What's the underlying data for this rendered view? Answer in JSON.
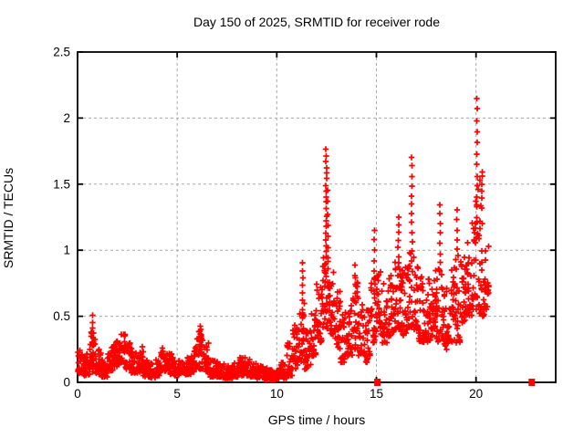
{
  "chart_data": {
    "type": "scatter",
    "title": "Day 150 of 2025, SRMTID for receiver rode",
    "xlabel": "GPS time / hours",
    "ylabel": "SRMTID / TECUs",
    "xlim": [
      0,
      24
    ],
    "ylim": [
      0,
      2.5
    ],
    "xticks": [
      0,
      5,
      10,
      15,
      20
    ],
    "yticks": [
      0,
      0.5,
      1,
      1.5,
      2,
      2.5
    ],
    "grid": "dashed",
    "legend": "none",
    "marker": "plus-cross",
    "marker_color": "#ff0000",
    "grid_color": "#a8a8a8",
    "axis_color": "#000000",
    "series_name": "SRMTID",
    "bands_format": [
      "x_start_hours",
      "x_end_hours",
      "y_min_TECUs",
      "y_max_TECUs",
      "n_points"
    ],
    "bands": [
      [
        0.0,
        0.3,
        0.07,
        0.25,
        30
      ],
      [
        0.3,
        0.6,
        0.05,
        0.22,
        30
      ],
      [
        0.6,
        0.9,
        0.08,
        0.38,
        30
      ],
      [
        0.9,
        1.2,
        0.06,
        0.25,
        28
      ],
      [
        1.2,
        1.5,
        0.04,
        0.18,
        28
      ],
      [
        1.5,
        1.8,
        0.08,
        0.27,
        28
      ],
      [
        1.8,
        2.1,
        0.12,
        0.33,
        30
      ],
      [
        2.1,
        2.4,
        0.14,
        0.37,
        30
      ],
      [
        2.4,
        2.7,
        0.1,
        0.3,
        28
      ],
      [
        2.7,
        3.0,
        0.07,
        0.24,
        28
      ],
      [
        3.0,
        3.3,
        0.08,
        0.27,
        28
      ],
      [
        3.3,
        3.6,
        0.04,
        0.18,
        26
      ],
      [
        3.6,
        3.9,
        0.03,
        0.15,
        26
      ],
      [
        3.9,
        4.2,
        0.05,
        0.2,
        26
      ],
      [
        4.2,
        4.5,
        0.08,
        0.26,
        28
      ],
      [
        4.5,
        4.8,
        0.06,
        0.22,
        26
      ],
      [
        4.8,
        5.1,
        0.05,
        0.19,
        26
      ],
      [
        5.1,
        5.4,
        0.07,
        0.21,
        26
      ],
      [
        5.4,
        5.7,
        0.06,
        0.2,
        26
      ],
      [
        5.7,
        6.0,
        0.08,
        0.28,
        28
      ],
      [
        6.0,
        6.3,
        0.1,
        0.4,
        30
      ],
      [
        6.3,
        6.6,
        0.08,
        0.3,
        26
      ],
      [
        6.6,
        6.9,
        0.04,
        0.17,
        26
      ],
      [
        6.9,
        7.2,
        0.04,
        0.16,
        26
      ],
      [
        7.2,
        7.5,
        0.03,
        0.14,
        26
      ],
      [
        7.5,
        7.8,
        0.03,
        0.14,
        26
      ],
      [
        7.8,
        8.1,
        0.04,
        0.16,
        26
      ],
      [
        8.1,
        8.4,
        0.05,
        0.2,
        26
      ],
      [
        8.4,
        8.7,
        0.05,
        0.18,
        26
      ],
      [
        8.7,
        9.0,
        0.04,
        0.15,
        26
      ],
      [
        9.0,
        9.3,
        0.03,
        0.13,
        26
      ],
      [
        9.3,
        9.6,
        0.02,
        0.11,
        26
      ],
      [
        9.6,
        9.9,
        0.02,
        0.1,
        28
      ],
      [
        9.9,
        10.2,
        0.02,
        0.11,
        28
      ],
      [
        10.2,
        10.5,
        0.03,
        0.15,
        26
      ],
      [
        10.5,
        10.8,
        0.05,
        0.3,
        26
      ],
      [
        10.8,
        11.1,
        0.1,
        0.45,
        28
      ],
      [
        11.1,
        11.4,
        0.15,
        0.6,
        28
      ],
      [
        11.4,
        11.7,
        0.1,
        0.4,
        26
      ],
      [
        11.7,
        12.0,
        0.2,
        0.55,
        28
      ],
      [
        12.0,
        12.3,
        0.3,
        0.75,
        30
      ],
      [
        12.3,
        12.6,
        0.4,
        0.95,
        30
      ],
      [
        12.6,
        12.9,
        0.35,
        0.85,
        28
      ],
      [
        12.9,
        13.2,
        0.25,
        0.7,
        28
      ],
      [
        13.2,
        13.5,
        0.15,
        0.55,
        28
      ],
      [
        13.5,
        13.8,
        0.2,
        0.6,
        28
      ],
      [
        13.8,
        14.1,
        0.25,
        0.85,
        28
      ],
      [
        14.1,
        14.4,
        0.2,
        0.6,
        28
      ],
      [
        14.4,
        14.7,
        0.15,
        0.55,
        26
      ],
      [
        14.7,
        15.0,
        0.3,
        0.8,
        28
      ],
      [
        15.0,
        15.3,
        0.35,
        0.85,
        28
      ],
      [
        15.3,
        15.6,
        0.3,
        0.75,
        28
      ],
      [
        15.6,
        15.9,
        0.35,
        0.85,
        28
      ],
      [
        15.9,
        16.2,
        0.4,
        0.95,
        28
      ],
      [
        16.2,
        16.5,
        0.35,
        0.9,
        28
      ],
      [
        16.5,
        16.8,
        0.4,
        1.0,
        28
      ],
      [
        16.8,
        17.1,
        0.4,
        0.95,
        28
      ],
      [
        17.1,
        17.4,
        0.3,
        0.85,
        28
      ],
      [
        17.4,
        17.7,
        0.3,
        0.8,
        28
      ],
      [
        17.7,
        18.0,
        0.35,
        0.85,
        28
      ],
      [
        18.0,
        18.3,
        0.3,
        0.9,
        28
      ],
      [
        18.3,
        18.6,
        0.25,
        0.8,
        26
      ],
      [
        18.6,
        18.9,
        0.3,
        0.85,
        26
      ],
      [
        18.9,
        19.2,
        0.3,
        1.0,
        28
      ],
      [
        19.2,
        19.5,
        0.45,
        0.95,
        28
      ],
      [
        19.5,
        19.8,
        0.5,
        1.1,
        28
      ],
      [
        19.8,
        20.1,
        0.55,
        1.4,
        30
      ],
      [
        20.1,
        20.4,
        0.5,
        1.55,
        30
      ],
      [
        20.4,
        20.65,
        0.55,
        1.05,
        20
      ]
    ],
    "spikes_format": {
      "x": "hours",
      "base": "TECUs",
      "top": "TECUs",
      "n": "points"
    },
    "spikes": [
      {
        "x": 0.78,
        "base": 0.3,
        "top": 0.5,
        "n": 6
      },
      {
        "x": 6.15,
        "base": 0.28,
        "top": 0.42,
        "n": 6
      },
      {
        "x": 11.3,
        "base": 0.5,
        "top": 0.9,
        "n": 8
      },
      {
        "x": 12.48,
        "base": 0.9,
        "top": 1.77,
        "n": 20
      },
      {
        "x": 12.56,
        "base": 0.85,
        "top": 1.45,
        "n": 8
      },
      {
        "x": 13.95,
        "base": 0.6,
        "top": 0.88,
        "n": 5
      },
      {
        "x": 14.9,
        "base": 0.7,
        "top": 1.15,
        "n": 7
      },
      {
        "x": 16.1,
        "base": 0.9,
        "top": 1.25,
        "n": 7
      },
      {
        "x": 16.78,
        "base": 1.0,
        "top": 1.7,
        "n": 11
      },
      {
        "x": 18.2,
        "base": 0.9,
        "top": 1.35,
        "n": 7
      },
      {
        "x": 19.05,
        "base": 1.0,
        "top": 1.3,
        "n": 5
      },
      {
        "x": 20.05,
        "base": 1.4,
        "top": 2.15,
        "n": 10
      },
      {
        "x": 20.3,
        "base": 1.4,
        "top": 1.6,
        "n": 5
      }
    ],
    "gap_markers": [
      [
        15.05,
        0
      ],
      [
        22.8,
        0
      ]
    ]
  }
}
